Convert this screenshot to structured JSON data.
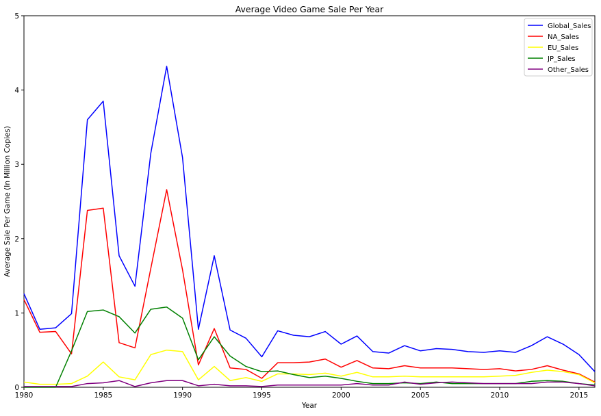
{
  "chart_data": {
    "type": "line",
    "title": "Average Video Game Sale Per Year",
    "xlabel": "Year",
    "ylabel": "Average Sale Per Game (In Million Copies)",
    "xlim": [
      1980,
      2016
    ],
    "ylim": [
      0,
      5
    ],
    "xticks": [
      1980,
      1985,
      1990,
      1995,
      2000,
      2005,
      2010,
      2015
    ],
    "yticks": [
      0,
      1,
      2,
      3,
      4,
      5
    ],
    "grid": false,
    "legend": "top-right",
    "x": [
      1980,
      1981,
      1982,
      1983,
      1984,
      1985,
      1986,
      1987,
      1988,
      1989,
      1990,
      1991,
      1992,
      1993,
      1994,
      1995,
      1996,
      1997,
      1998,
      1999,
      2000,
      2001,
      2002,
      2003,
      2004,
      2005,
      2006,
      2007,
      2008,
      2009,
      2010,
      2011,
      2012,
      2013,
      2014,
      2015,
      2016
    ],
    "series": [
      {
        "name": "Global_Sales",
        "color": "#0000ff",
        "values": [
          1.26,
          0.78,
          0.8,
          0.99,
          3.6,
          3.85,
          1.77,
          1.36,
          3.15,
          4.32,
          3.09,
          0.78,
          1.77,
          0.77,
          0.66,
          0.41,
          0.76,
          0.7,
          0.68,
          0.75,
          0.58,
          0.69,
          0.48,
          0.46,
          0.56,
          0.49,
          0.52,
          0.51,
          0.48,
          0.47,
          0.49,
          0.47,
          0.56,
          0.68,
          0.58,
          0.44,
          0.21
        ]
      },
      {
        "name": "NA_Sales",
        "color": "#ff0000",
        "values": [
          1.18,
          0.74,
          0.75,
          0.45,
          2.38,
          2.41,
          0.6,
          0.53,
          1.6,
          2.66,
          1.58,
          0.3,
          0.79,
          0.26,
          0.24,
          0.12,
          0.33,
          0.33,
          0.34,
          0.38,
          0.27,
          0.36,
          0.26,
          0.25,
          0.29,
          0.26,
          0.26,
          0.26,
          0.25,
          0.24,
          0.25,
          0.22,
          0.24,
          0.29,
          0.23,
          0.18,
          0.07
        ]
      },
      {
        "name": "EU_Sales",
        "color": "#ffff00",
        "values": [
          0.07,
          0.04,
          0.04,
          0.05,
          0.15,
          0.34,
          0.14,
          0.1,
          0.44,
          0.5,
          0.48,
          0.1,
          0.28,
          0.09,
          0.13,
          0.08,
          0.18,
          0.18,
          0.17,
          0.19,
          0.15,
          0.2,
          0.14,
          0.14,
          0.15,
          0.14,
          0.14,
          0.14,
          0.14,
          0.14,
          0.15,
          0.16,
          0.2,
          0.23,
          0.21,
          0.17,
          0.06
        ]
      },
      {
        "name": "JP_Sales",
        "color": "#008000",
        "values": [
          0.0,
          0.0,
          0.0,
          0.49,
          1.02,
          1.04,
          0.95,
          0.73,
          1.05,
          1.08,
          0.93,
          0.37,
          0.68,
          0.42,
          0.28,
          0.21,
          0.22,
          0.17,
          0.13,
          0.15,
          0.12,
          0.08,
          0.05,
          0.05,
          0.06,
          0.05,
          0.07,
          0.05,
          0.05,
          0.05,
          0.05,
          0.05,
          0.08,
          0.09,
          0.08,
          0.05,
          0.03
        ]
      },
      {
        "name": "Other_Sales",
        "color": "#800080",
        "values": [
          0.01,
          0.01,
          0.01,
          0.01,
          0.05,
          0.06,
          0.09,
          0.01,
          0.06,
          0.09,
          0.09,
          0.02,
          0.04,
          0.02,
          0.02,
          0.01,
          0.03,
          0.03,
          0.03,
          0.03,
          0.03,
          0.05,
          0.03,
          0.03,
          0.07,
          0.04,
          0.06,
          0.07,
          0.06,
          0.05,
          0.05,
          0.05,
          0.05,
          0.07,
          0.07,
          0.05,
          0.02
        ]
      }
    ]
  }
}
